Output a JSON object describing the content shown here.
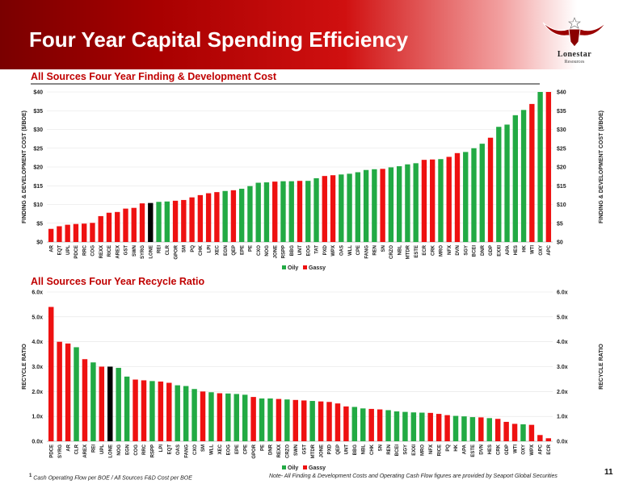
{
  "slide": {
    "title": "Four Year Capital Spending Efficiency",
    "logo": {
      "name": "Lonestar",
      "sub": "Resources"
    },
    "footnote_num": "1",
    "footnote": "Cash Operating Flow per BOE / All Sources F&D Cost per BOE",
    "note": "Note- All Finding & Development Costs and Operating Cash Flow figures are provided by Seaport Global Securities",
    "page": "11"
  },
  "chart_data": [
    {
      "type": "bar",
      "title": "All Sources Four Year Finding & Development Cost",
      "ylabel": "FINDING & DEVELOPMENT COST ($/BOE)",
      "ylim": [
        0,
        40
      ],
      "yticks": [
        "$0",
        "$5",
        "$10",
        "$15",
        "$20",
        "$25",
        "$30",
        "$35",
        "$40"
      ],
      "legend": {
        "placement": "bottom",
        "entries": [
          "Oily",
          "Gassy"
        ]
      },
      "colors": {
        "Oily": "#22aa44",
        "Gassy": "#ee1111",
        "LONE": "#000000"
      },
      "categories": [
        "AR",
        "EQT",
        "UPL",
        "PDCE",
        "RRC",
        "COG",
        "REXX",
        "RICE",
        "AREX",
        "GST",
        "SWN",
        "SYRG",
        "LONE",
        "REI",
        "CLR",
        "GPOR",
        "SM",
        "PQ",
        "CHK",
        "LPI",
        "XEC",
        "EGN",
        "QEP",
        "EPE",
        "PE",
        "CXO",
        "NOG",
        "JONE",
        "RSPP",
        "BBG",
        "UNT",
        "EOG",
        "TAT",
        "PXD",
        "WPX",
        "OAS",
        "WLL",
        "CPE",
        "FANG",
        "REN",
        "SN",
        "CRZO",
        "NBL",
        "MTDR",
        "ESTE",
        "ECR",
        "CRK",
        "MRO",
        "NFX",
        "DVN",
        "SGY",
        "BCEI",
        "DNR",
        "GDP",
        "EXXI",
        "APA",
        "HES",
        "HK",
        "WTI",
        "OXY",
        "APC"
      ],
      "values": [
        3.5,
        4.2,
        4.6,
        4.8,
        4.9,
        5.1,
        6.9,
        7.8,
        8.0,
        8.9,
        9.1,
        10.3,
        10.4,
        10.7,
        10.8,
        11.0,
        11.2,
        11.9,
        12.5,
        13.0,
        13.3,
        13.6,
        13.8,
        14.2,
        14.9,
        15.8,
        15.9,
        16.1,
        16.2,
        16.2,
        16.3,
        16.3,
        17.0,
        17.6,
        17.8,
        18.0,
        18.2,
        18.6,
        19.2,
        19.4,
        19.5,
        19.9,
        20.2,
        20.7,
        21.0,
        21.9,
        22.0,
        22.1,
        22.7,
        23.7,
        24.0,
        25.0,
        26.2,
        27.8,
        30.7,
        31.3,
        33.8,
        35.2,
        36.8,
        40.0,
        40.0
      ],
      "kinds": [
        "Gassy",
        "Gassy",
        "Gassy",
        "Gassy",
        "Gassy",
        "Gassy",
        "Gassy",
        "Gassy",
        "Gassy",
        "Gassy",
        "Gassy",
        "Gassy",
        "LONE",
        "Oily",
        "Oily",
        "Gassy",
        "Gassy",
        "Gassy",
        "Gassy",
        "Gassy",
        "Gassy",
        "Oily",
        "Gassy",
        "Oily",
        "Oily",
        "Oily",
        "Oily",
        "Gassy",
        "Oily",
        "Oily",
        "Gassy",
        "Oily",
        "Oily",
        "Gassy",
        "Gassy",
        "Oily",
        "Oily",
        "Oily",
        "Oily",
        "Oily",
        "Gassy",
        "Oily",
        "Oily",
        "Oily",
        "Oily",
        "Gassy",
        "Gassy",
        "Oily",
        "Gassy",
        "Gassy",
        "Oily",
        "Oily",
        "Oily",
        "Gassy",
        "Oily",
        "Oily",
        "Oily",
        "Oily",
        "Gassy",
        "Oily",
        "Gassy"
      ]
    },
    {
      "type": "bar",
      "title": "All Sources Four Year Recycle Ratio",
      "ylabel": "RECYCLE RATIO",
      "ylim": [
        0,
        6
      ],
      "yticks": [
        "0.0x",
        "1.0x",
        "2.0x",
        "3.0x",
        "4.0x",
        "5.0x",
        "6.0x"
      ],
      "legend": {
        "placement": "bottom",
        "entries": [
          "Oily",
          "Gassy"
        ]
      },
      "colors": {
        "Oily": "#22aa44",
        "Gassy": "#ee1111",
        "LONE": "#000000"
      },
      "categories": [
        "PDCE",
        "SYRG",
        "AR",
        "CLR",
        "AREX",
        "REI",
        "UPL",
        "LONE",
        "NOG",
        "EGN",
        "COG",
        "RRC",
        "RSPP",
        "LPI",
        "EQT",
        "OAS",
        "FANG",
        "CXO",
        "SM",
        "WLL",
        "XEC",
        "EOG",
        "EPE",
        "CPE",
        "GPOR",
        "PE",
        "DNR",
        "REXX",
        "CRZO",
        "SWN",
        "GST",
        "MTDR",
        "JONE",
        "PXD",
        "QEP",
        "UNT",
        "BBG",
        "NBL",
        "CHK",
        "SN",
        "REN",
        "BCEI",
        "SGY",
        "EXXI",
        "MRO",
        "NFX",
        "RICE",
        "PQ",
        "HK",
        "APA",
        "ESTE",
        "DVN",
        "HES",
        "CRK",
        "GDP",
        "WTI",
        "OXY",
        "WPX",
        "APC",
        "ECR"
      ],
      "values": [
        5.4,
        4.0,
        3.93,
        3.78,
        3.3,
        3.17,
        3.0,
        3.0,
        2.95,
        2.6,
        2.48,
        2.45,
        2.42,
        2.4,
        2.35,
        2.25,
        2.22,
        2.1,
        2.0,
        1.97,
        1.93,
        1.92,
        1.9,
        1.87,
        1.78,
        1.72,
        1.72,
        1.7,
        1.68,
        1.66,
        1.64,
        1.62,
        1.6,
        1.58,
        1.52,
        1.4,
        1.38,
        1.32,
        1.3,
        1.28,
        1.25,
        1.2,
        1.18,
        1.16,
        1.15,
        1.14,
        1.1,
        1.05,
        1.02,
        1.0,
        0.97,
        0.96,
        0.93,
        0.9,
        0.78,
        0.7,
        0.68,
        0.66,
        0.25,
        0.12
      ],
      "kinds": [
        "Gassy",
        "Gassy",
        "Gassy",
        "Oily",
        "Gassy",
        "Oily",
        "Gassy",
        "LONE",
        "Oily",
        "Oily",
        "Gassy",
        "Gassy",
        "Oily",
        "Gassy",
        "Gassy",
        "Oily",
        "Oily",
        "Oily",
        "Gassy",
        "Oily",
        "Gassy",
        "Oily",
        "Oily",
        "Oily",
        "Gassy",
        "Oily",
        "Oily",
        "Gassy",
        "Oily",
        "Gassy",
        "Gassy",
        "Oily",
        "Gassy",
        "Gassy",
        "Gassy",
        "Gassy",
        "Oily",
        "Oily",
        "Gassy",
        "Gassy",
        "Oily",
        "Oily",
        "Oily",
        "Oily",
        "Oily",
        "Gassy",
        "Gassy",
        "Gassy",
        "Oily",
        "Oily",
        "Oily",
        "Gassy",
        "Oily",
        "Gassy",
        "Gassy",
        "Gassy",
        "Oily",
        "Gassy",
        "Gassy",
        "Gassy"
      ]
    }
  ]
}
